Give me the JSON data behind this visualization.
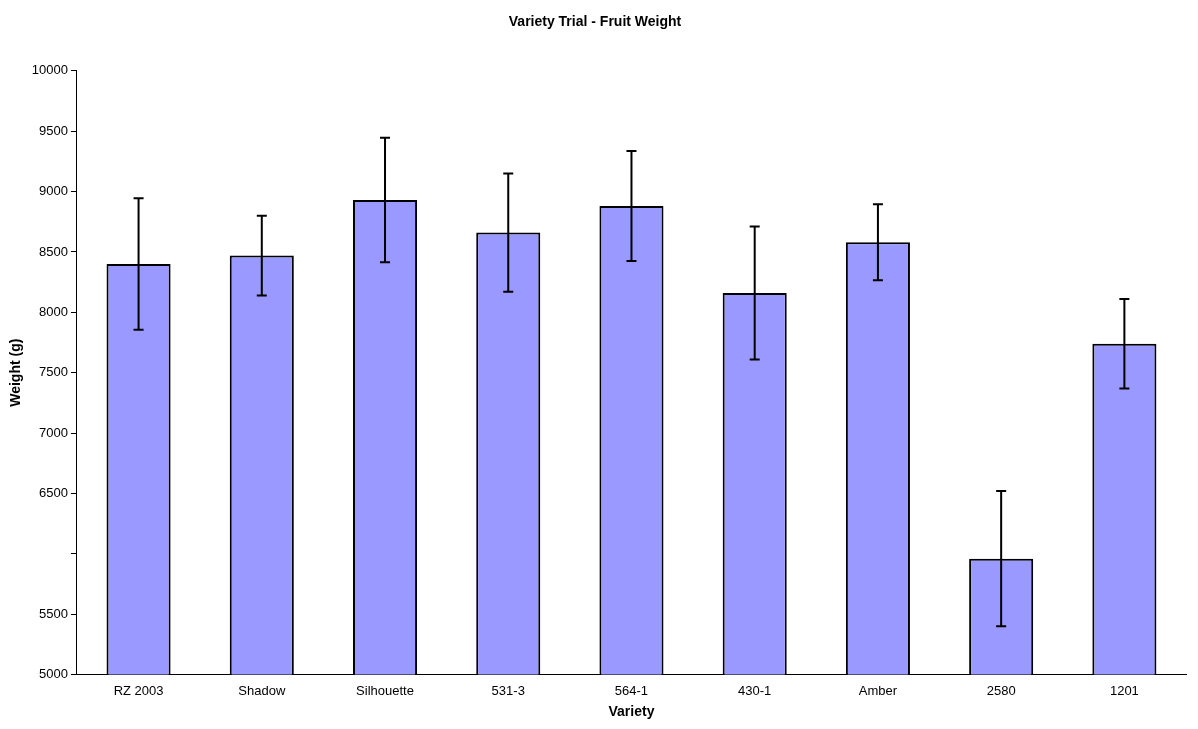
{
  "chart_data": {
    "type": "bar",
    "title": "Variety Trial - Fruit Weight",
    "xlabel": "Variety",
    "ylabel": "Weight (g)",
    "categories": [
      "RZ 2003",
      "Shadow",
      "Silhouette",
      "531-3",
      "564-1",
      "430-1",
      "Amber",
      "2580",
      "1201"
    ],
    "values": [
      8400,
      8470,
      8930,
      8660,
      8880,
      8160,
      8580,
      5960,
      7740
    ],
    "errors": [
      545,
      330,
      515,
      490,
      455,
      550,
      315,
      560,
      370
    ],
    "color": "#9999ff",
    "ylim": [
      5000,
      10000
    ],
    "yticks": [
      5000,
      5500,
      {
        "value": 6000,
        "label": null
      },
      6500,
      7000,
      7500,
      8000,
      8500,
      9000,
      9500,
      10000
    ],
    "grid": false,
    "legend": false
  }
}
